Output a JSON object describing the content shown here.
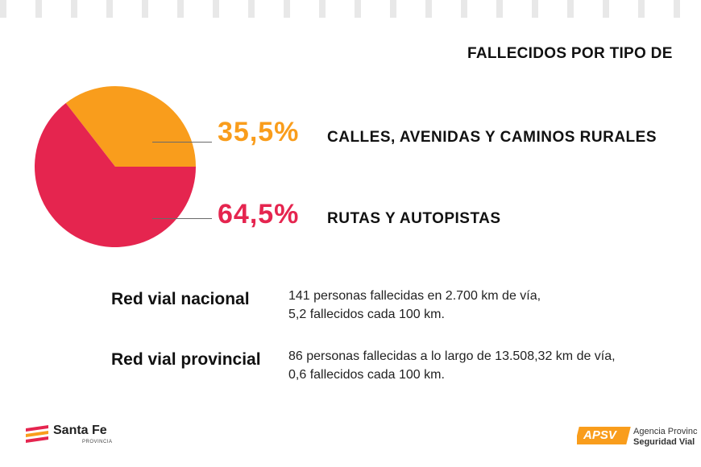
{
  "chart_data": {
    "type": "pie",
    "title": "FALLECIDOS POR TIPO DE ",
    "slices": [
      {
        "label": "CALLES, AVENIDAS Y CAMINOS RURALES",
        "value": 35.5,
        "display": "35,5%",
        "color": "#F99D1C"
      },
      {
        "label": "RUTAS Y AUTOPISTAS",
        "value": 64.5,
        "display": "64,5%",
        "color": "#E5254F"
      }
    ]
  },
  "stats": [
    {
      "label": "Red vial nacional",
      "line1": "141 personas fallecidas en 2.700 km de vía,",
      "line2": "5,2 fallecidos cada 100 km."
    },
    {
      "label": "Red vial provincial",
      "line1": "86 personas fallecidas a lo largo de 13.508,32 km de vía,",
      "line2": "0,6 fallecidos cada 100 km."
    }
  ],
  "logos": {
    "santa_fe": {
      "name": "Santa Fe",
      "sub": "PROVINCIA"
    },
    "apsv": {
      "badge": "APSV",
      "line1": "Agencia Provinc",
      "line2": "Seguridad Vial"
    }
  },
  "colors": {
    "orange": "#F99D1C",
    "red": "#E5254F",
    "leader": "#6a6a6a"
  }
}
